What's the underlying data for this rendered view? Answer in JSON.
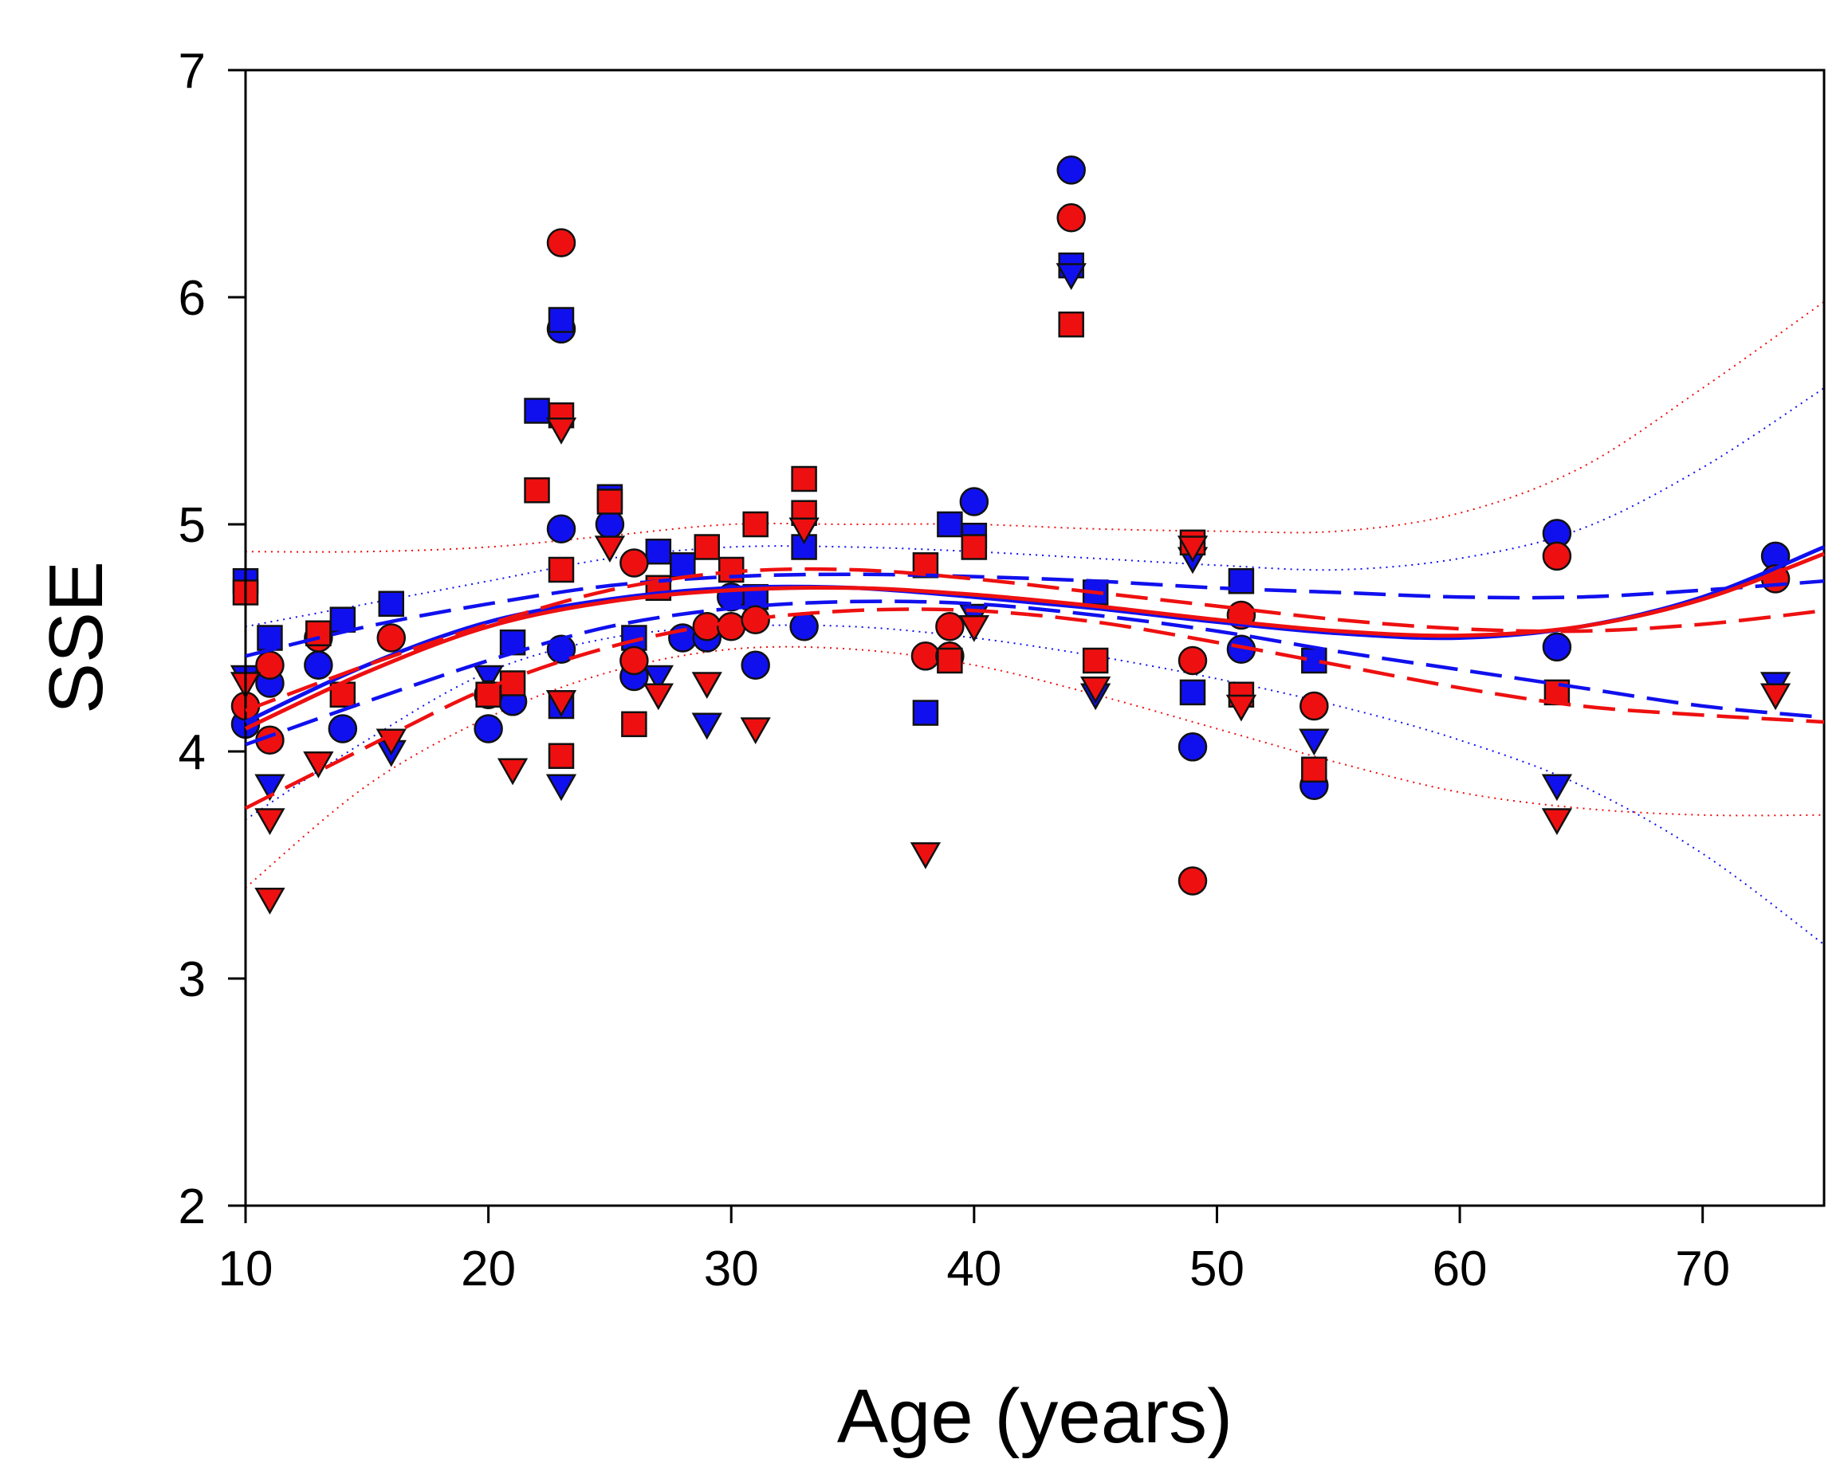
{
  "chart_data": {
    "type": "scatter",
    "title": "",
    "xlabel": "Age (years)",
    "ylabel": "SSE",
    "xlim": [
      10,
      75
    ],
    "ylim": [
      2,
      7
    ],
    "xticks": [
      10,
      20,
      30,
      40,
      50,
      60,
      70
    ],
    "yticks": [
      2,
      3,
      4,
      5,
      6,
      7
    ],
    "grid": false,
    "colors": {
      "blue": "#1010ee",
      "red": "#ee1010"
    },
    "series": [
      {
        "name": "blue-circle",
        "color": "blue",
        "marker": "circle",
        "x": [
          10,
          11,
          13,
          14,
          20,
          21,
          23,
          23,
          23,
          25,
          26,
          28,
          29,
          30,
          31,
          33,
          40,
          44,
          49,
          51,
          54,
          64,
          64,
          73
        ],
        "y": [
          4.12,
          4.3,
          4.38,
          4.1,
          4.1,
          4.22,
          5.86,
          4.98,
          4.45,
          5.0,
          4.33,
          4.5,
          4.5,
          4.68,
          4.38,
          4.55,
          5.1,
          6.56,
          4.02,
          4.45,
          3.85,
          4.96,
          4.46,
          4.86
        ]
      },
      {
        "name": "blue-square",
        "color": "blue",
        "marker": "square",
        "x": [
          10,
          11,
          13,
          14,
          16,
          21,
          22,
          23,
          23,
          25,
          26,
          27,
          28,
          31,
          33,
          38,
          39,
          40,
          44,
          45,
          49,
          51,
          54
        ],
        "y": [
          4.75,
          4.5,
          4.52,
          4.58,
          4.65,
          4.48,
          5.5,
          5.9,
          4.2,
          5.12,
          4.5,
          4.88,
          4.82,
          4.68,
          4.9,
          4.17,
          5.0,
          4.95,
          6.14,
          4.7,
          4.26,
          4.75,
          4.4
        ]
      },
      {
        "name": "blue-triangle",
        "color": "blue",
        "marker": "triangle",
        "x": [
          10,
          11,
          16,
          20,
          23,
          27,
          29,
          40,
          44,
          45,
          49,
          54,
          64,
          73
        ],
        "y": [
          4.33,
          3.85,
          4.0,
          4.33,
          3.85,
          4.33,
          4.12,
          4.6,
          6.1,
          4.25,
          4.85,
          4.05,
          3.85,
          4.3
        ]
      },
      {
        "name": "red-circle",
        "color": "red",
        "marker": "circle",
        "x": [
          10,
          11,
          11,
          13,
          16,
          20,
          23,
          26,
          26,
          29,
          30,
          31,
          38,
          39,
          39,
          44,
          49,
          49,
          51,
          54,
          64,
          73
        ],
        "y": [
          4.2,
          4.38,
          4.05,
          4.5,
          4.5,
          4.25,
          6.24,
          4.83,
          4.4,
          4.55,
          4.55,
          4.58,
          4.42,
          4.55,
          4.42,
          6.35,
          3.43,
          4.4,
          4.6,
          4.2,
          4.86,
          4.76
        ]
      },
      {
        "name": "red-square",
        "color": "red",
        "marker": "square",
        "x": [
          10,
          13,
          14,
          20,
          21,
          22,
          23,
          23,
          23,
          25,
          26,
          27,
          29,
          30,
          31,
          33,
          33,
          38,
          39,
          40,
          44,
          45,
          49,
          51,
          54,
          64
        ],
        "y": [
          4.7,
          4.52,
          4.25,
          4.25,
          4.3,
          5.15,
          5.48,
          4.8,
          3.98,
          5.1,
          4.12,
          4.72,
          4.9,
          4.8,
          5.0,
          5.2,
          5.05,
          4.82,
          4.4,
          4.9,
          5.88,
          4.4,
          4.92,
          4.25,
          3.92,
          4.26
        ]
      },
      {
        "name": "red-triangle",
        "color": "red",
        "marker": "triangle",
        "x": [
          10,
          11,
          11,
          13,
          16,
          21,
          23,
          23,
          25,
          27,
          29,
          31,
          33,
          38,
          40,
          45,
          49,
          51,
          64,
          73
        ],
        "y": [
          4.3,
          3.7,
          3.35,
          3.95,
          4.05,
          3.92,
          5.42,
          4.22,
          4.9,
          4.25,
          4.3,
          4.1,
          4.98,
          3.55,
          4.55,
          4.28,
          4.9,
          4.2,
          3.7,
          4.25
        ]
      }
    ],
    "fits": [
      {
        "name": "blue-solid-fit",
        "color": "blue",
        "style": "solid",
        "x": [
          10,
          15,
          20,
          25,
          30,
          35,
          40,
          45,
          50,
          55,
          60,
          65,
          70,
          75
        ],
        "y": [
          4.13,
          4.38,
          4.57,
          4.67,
          4.72,
          4.72,
          4.68,
          4.63,
          4.57,
          4.52,
          4.5,
          4.55,
          4.68,
          4.9
        ]
      },
      {
        "name": "blue-dash-fit-upper",
        "color": "blue",
        "style": "dashed",
        "x": [
          10,
          15,
          20,
          25,
          30,
          35,
          40,
          45,
          50,
          55,
          60,
          65,
          70,
          75
        ],
        "y": [
          4.42,
          4.55,
          4.65,
          4.73,
          4.77,
          4.78,
          4.77,
          4.75,
          4.72,
          4.7,
          4.68,
          4.68,
          4.71,
          4.75
        ]
      },
      {
        "name": "blue-dash-fit-lower",
        "color": "blue",
        "style": "dashed",
        "x": [
          10,
          15,
          20,
          25,
          30,
          35,
          40,
          45,
          50,
          55,
          60,
          65,
          70,
          75
        ],
        "y": [
          4.03,
          4.22,
          4.4,
          4.55,
          4.63,
          4.66,
          4.65,
          4.6,
          4.53,
          4.44,
          4.36,
          4.28,
          4.2,
          4.15
        ]
      },
      {
        "name": "red-solid-fit",
        "color": "red",
        "style": "solid",
        "x": [
          10,
          15,
          20,
          25,
          30,
          35,
          40,
          45,
          50,
          55,
          60,
          65,
          70,
          75
        ],
        "y": [
          4.1,
          4.35,
          4.55,
          4.66,
          4.71,
          4.72,
          4.69,
          4.64,
          4.58,
          4.53,
          4.51,
          4.55,
          4.67,
          4.87
        ]
      },
      {
        "name": "red-dash-fit-upper",
        "color": "red",
        "style": "dashed",
        "x": [
          10,
          15,
          20,
          25,
          30,
          35,
          40,
          45,
          50,
          55,
          60,
          65,
          70,
          75
        ],
        "y": [
          4.18,
          4.38,
          4.56,
          4.71,
          4.79,
          4.8,
          4.76,
          4.7,
          4.64,
          4.58,
          4.54,
          4.53,
          4.56,
          4.62
        ]
      },
      {
        "name": "red-dash-fit-lower",
        "color": "red",
        "style": "dashed",
        "x": [
          10,
          15,
          20,
          25,
          30,
          35,
          40,
          45,
          50,
          55,
          60,
          65,
          70,
          75
        ],
        "y": [
          3.75,
          4.02,
          4.28,
          4.46,
          4.57,
          4.62,
          4.62,
          4.57,
          4.48,
          4.38,
          4.28,
          4.2,
          4.16,
          4.13
        ]
      }
    ],
    "confidence_bands": [
      {
        "name": "blue-band-upper",
        "color": "blue",
        "x": [
          10,
          15,
          20,
          25,
          30,
          35,
          40,
          45,
          50,
          55,
          60,
          65,
          70,
          75
        ],
        "y": [
          4.55,
          4.65,
          4.75,
          4.85,
          4.9,
          4.9,
          4.88,
          4.85,
          4.82,
          4.8,
          4.85,
          4.98,
          5.25,
          5.6
        ]
      },
      {
        "name": "blue-band-lower",
        "color": "blue",
        "x": [
          10,
          15,
          20,
          25,
          30,
          35,
          40,
          45,
          50,
          55,
          60,
          65,
          70,
          75
        ],
        "y": [
          3.7,
          4.05,
          4.35,
          4.5,
          4.55,
          4.55,
          4.5,
          4.42,
          4.32,
          4.2,
          4.05,
          3.85,
          3.55,
          3.15
        ]
      },
      {
        "name": "red-band-upper",
        "color": "red",
        "x": [
          10,
          15,
          20,
          25,
          30,
          35,
          40,
          45,
          50,
          55,
          60,
          65,
          70,
          75
        ],
        "y": [
          4.88,
          4.88,
          4.9,
          4.95,
          5.0,
          5.0,
          5.0,
          4.98,
          4.97,
          4.97,
          5.05,
          5.25,
          5.6,
          5.98
        ]
      },
      {
        "name": "red-band-lower",
        "color": "red",
        "x": [
          10,
          15,
          20,
          25,
          30,
          35,
          40,
          45,
          50,
          55,
          60,
          65,
          70,
          75
        ],
        "y": [
          3.4,
          3.85,
          4.15,
          4.35,
          4.45,
          4.45,
          4.38,
          4.25,
          4.1,
          3.95,
          3.82,
          3.75,
          3.72,
          3.72
        ]
      }
    ]
  }
}
